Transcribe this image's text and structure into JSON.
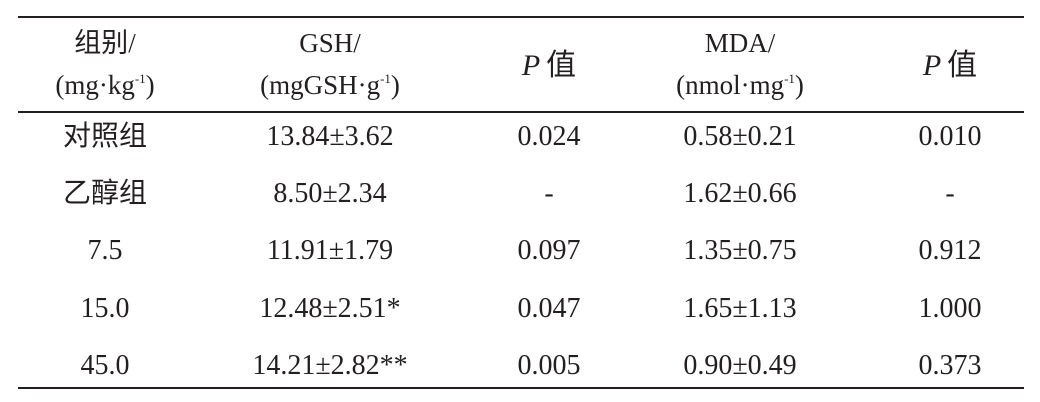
{
  "table": {
    "header": [
      {
        "line1": "组别/",
        "line2": "(mg·kg",
        "sup": "-1",
        "close": ")"
      },
      {
        "line1": "GSH/",
        "line2": "(mgGSH·g",
        "sup": "-1",
        "close": ")"
      },
      {
        "italic": "P",
        "text": "值"
      },
      {
        "line1": "MDA/",
        "line2": "(nmol·mg",
        "sup": "-1",
        "close": ")"
      },
      {
        "italic": "P",
        "text": "值"
      }
    ],
    "rows": [
      [
        "对照组",
        "13.84±3.62",
        "0.024",
        "0.58±0.21",
        "0.010"
      ],
      [
        "乙醇组",
        "8.50±2.34",
        "-",
        "1.62±0.66",
        "-"
      ],
      [
        "7.5",
        "11.91±1.79",
        "0.097",
        "1.35±0.75",
        "0.912"
      ],
      [
        "15.0",
        "12.48±2.51*",
        "0.047",
        "1.65±1.13",
        "1.000"
      ],
      [
        "45.0",
        "14.21±2.82**",
        "0.005",
        "0.90±0.49",
        "0.373"
      ]
    ]
  }
}
